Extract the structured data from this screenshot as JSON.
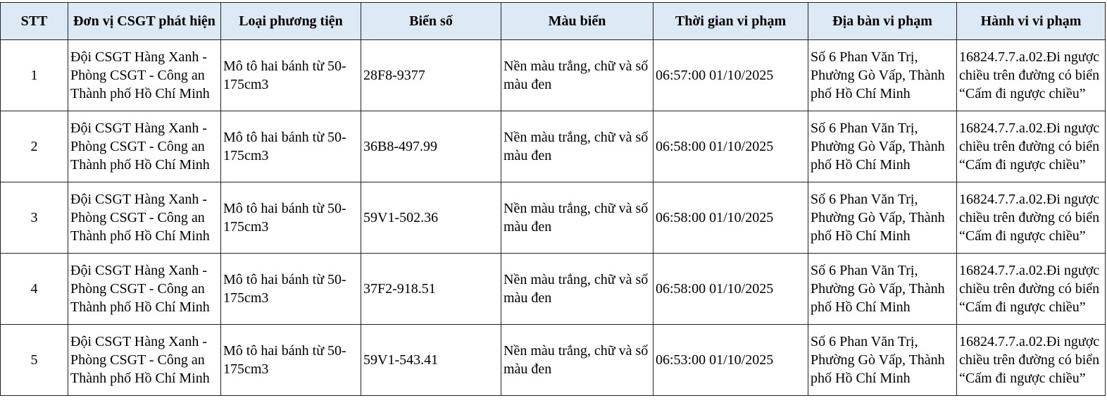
{
  "header_bg": "#dde9f5",
  "columns": [
    "STT",
    "Đơn vị CSGT phát hiện",
    "Loại phương tiện",
    "Biển số",
    "Màu biển",
    "Thời gian vi phạm",
    "Địa bàn vi phạm",
    "Hành vi vi phạm"
  ],
  "rows": [
    [
      "1",
      "Đội CSGT Hàng Xanh - Phòng CSGT - Công an Thành phố Hồ Chí Minh",
      "Mô tô hai bánh từ 50-175cm3",
      "28F8-9377",
      "Nền màu trắng, chữ và số màu đen",
      "06:57:00 01/10/2025",
      "Số 6 Phan Văn Trị, Phường Gò Vấp, Thành phố Hồ Chí Minh",
      "16824.7.7.a.02.Đi ngược chiều trên đường có biển “Cấm đi ngược chiều”"
    ],
    [
      "2",
      "Đội CSGT Hàng Xanh - Phòng CSGT - Công an Thành phố Hồ Chí Minh",
      "Mô tô hai bánh từ 50-175cm3",
      "36B8-497.99",
      "Nền màu trắng, chữ và số màu đen",
      "06:58:00 01/10/2025",
      "Số 6 Phan Văn Trị, Phường Gò Vấp, Thành phố Hồ Chí Minh",
      "16824.7.7.a.02.Đi ngược chiều trên đường có biển “Cấm đi ngược chiều”"
    ],
    [
      "3",
      "Đội CSGT Hàng Xanh - Phòng CSGT - Công an Thành phố Hồ Chí Minh",
      "Mô tô hai bánh từ 50-175cm3",
      "59V1-502.36",
      "Nền màu trắng, chữ và số màu đen",
      "06:58:00 01/10/2025",
      "Số 6 Phan Văn Trị, Phường Gò Vấp, Thành phố Hồ Chí Minh",
      "16824.7.7.a.02.Đi ngược chiều trên đường có biển “Cấm đi ngược chiều”"
    ],
    [
      "4",
      "Đội CSGT Hàng Xanh - Phòng CSGT - Công an Thành phố Hồ Chí Minh",
      "Mô tô hai bánh từ 50-175cm3",
      "37F2-918.51",
      "Nền màu trắng, chữ và số màu đen",
      "06:58:00 01/10/2025",
      "Số 6 Phan Văn Trị, Phường Gò Vấp, Thành phố Hồ Chí Minh",
      "16824.7.7.a.02.Đi ngược chiều trên đường có biển “Cấm đi ngược chiều”"
    ],
    [
      "5",
      "Đội CSGT Hàng Xanh - Phòng CSGT - Công an Thành phố Hồ Chí Minh",
      "Mô tô hai bánh từ 50-175cm3",
      "59V1-543.41",
      "Nền màu trắng, chữ và số màu đen",
      "06:53:00 01/10/2025",
      "Số 6 Phan Văn Trị, Phường Gò Vấp, Thành phố Hồ Chí Minh",
      "16824.7.7.a.02.Đi ngược chiều trên đường có biển “Cấm đi ngược chiều”"
    ]
  ]
}
